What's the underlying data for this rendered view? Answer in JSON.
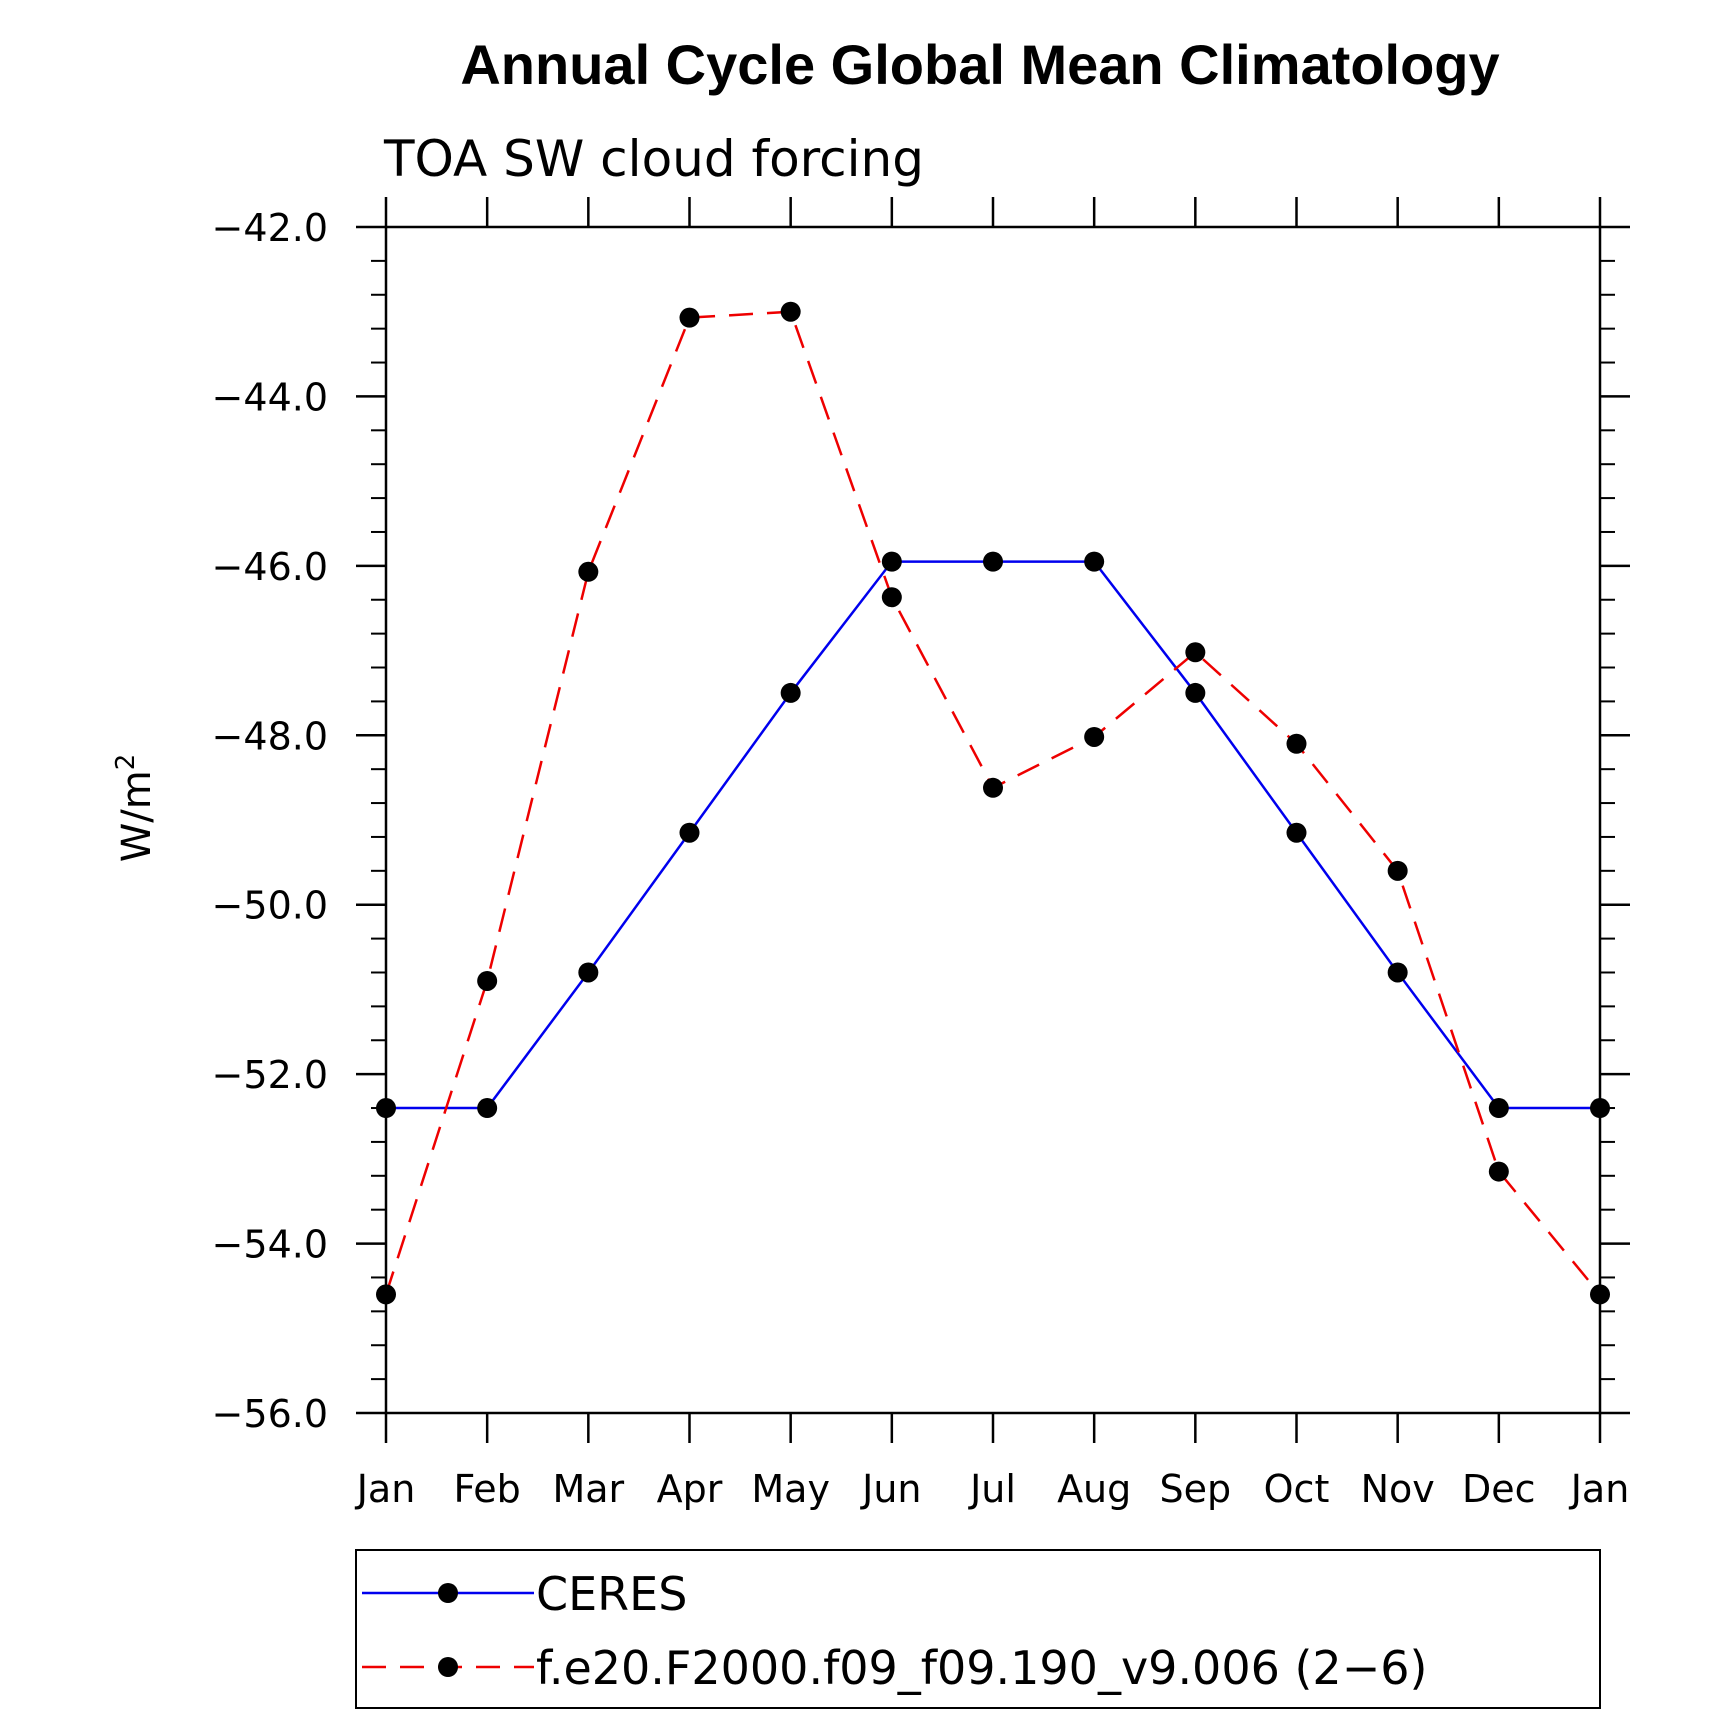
{
  "chart_data": {
    "type": "line",
    "title": "Annual Cycle Global Mean Climatology",
    "subtitle": "TOA SW cloud forcing",
    "ylabel": "W/m",
    "ylabel_sup": "2",
    "xlabel": "",
    "categories": [
      "Jan",
      "Feb",
      "Mar",
      "Apr",
      "May",
      "Jun",
      "Jul",
      "Aug",
      "Sep",
      "Oct",
      "Nov",
      "Dec",
      "Jan"
    ],
    "ylim": [
      -56.0,
      -42.0
    ],
    "yticks": [
      -56.0,
      -54.0,
      -52.0,
      -50.0,
      -48.0,
      -46.0,
      -44.0,
      -42.0
    ],
    "ytick_labels": [
      "−56.0",
      "−54.0",
      "−52.0",
      "−50.0",
      "−48.0",
      "−46.0",
      "−44.0",
      "−42.0"
    ],
    "grid": false,
    "legend_position": "bottom",
    "series": [
      {
        "name": "CERES",
        "color": "#0000ee",
        "dash": "solid",
        "values": [
          -52.4,
          -52.4,
          -50.8,
          -49.15,
          -47.5,
          -45.95,
          -45.95,
          -45.95,
          -47.5,
          -49.15,
          -50.8,
          -52.4,
          -52.4
        ]
      },
      {
        "name": "f.e20.F2000.f09_f09.190_v9.006 (2−6)",
        "color": "#ee0000",
        "dash": "dashed",
        "values": [
          -54.6,
          -50.9,
          -46.07,
          -43.07,
          -43.0,
          -46.37,
          -48.62,
          -48.02,
          -47.02,
          -48.1,
          -49.6,
          -53.15,
          -54.6
        ]
      }
    ]
  }
}
